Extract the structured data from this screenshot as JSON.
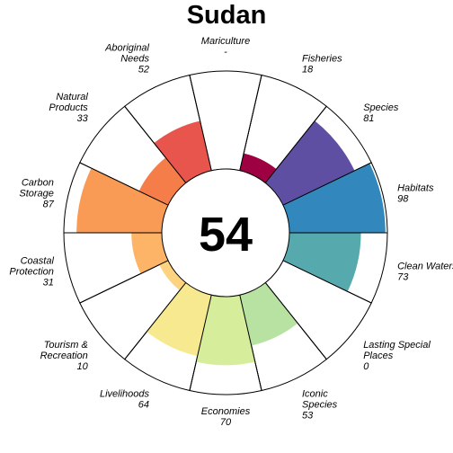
{
  "chart_data": {
    "type": "radial-bar",
    "title": "Sudan",
    "center_value": "54",
    "max_value": 100,
    "segments": [
      {
        "key": "fisheries",
        "label": "Fisheries",
        "value_text": "18",
        "value": 18,
        "color": "#9e0142"
      },
      {
        "key": "species",
        "label": "Species",
        "value_text": "81",
        "value": 81,
        "color": "#5e4fa2"
      },
      {
        "key": "habitats",
        "label": "Habitats",
        "value_text": "98",
        "value": 98,
        "color": "#3288bd"
      },
      {
        "key": "clean-waters",
        "label": "Clean Waters",
        "value_text": "73",
        "value": 73,
        "color": "#56aaae"
      },
      {
        "key": "lasting-special-places",
        "label": "Lasting Special Places",
        "value_text": "0",
        "value": 0,
        "color": "#8fd0a4"
      },
      {
        "key": "iconic-species",
        "label": "Iconic Species",
        "value_text": "53",
        "value": 53,
        "color": "#b8e2a2"
      },
      {
        "key": "economies",
        "label": "Economies",
        "value_text": "70",
        "value": 70,
        "color": "#d6ee9b"
      },
      {
        "key": "livelihoods",
        "label": "Livelihoods",
        "value_text": "64",
        "value": 64,
        "color": "#f7e98f"
      },
      {
        "key": "tourism-recreation",
        "label": "Tourism & Recreation",
        "value_text": "10",
        "value": 10,
        "color": "#fdd380"
      },
      {
        "key": "coastal-protection",
        "label": "Coastal Protection",
        "value_text": "31",
        "value": 31,
        "color": "#fdb466"
      },
      {
        "key": "carbon-storage",
        "label": "Carbon Storage",
        "value_text": "87",
        "value": 87,
        "color": "#f99a55"
      },
      {
        "key": "natural-products",
        "label": "Natural Products",
        "value_text": "33",
        "value": 33,
        "color": "#f47d4a"
      },
      {
        "key": "aboriginal-needs",
        "label": "Aboriginal Needs",
        "value_text": "52",
        "value": 52,
        "color": "#e8554d"
      },
      {
        "key": "mariculture",
        "label": "Mariculture",
        "value_text": "-",
        "value": null,
        "color": "#d53e4f"
      }
    ]
  }
}
